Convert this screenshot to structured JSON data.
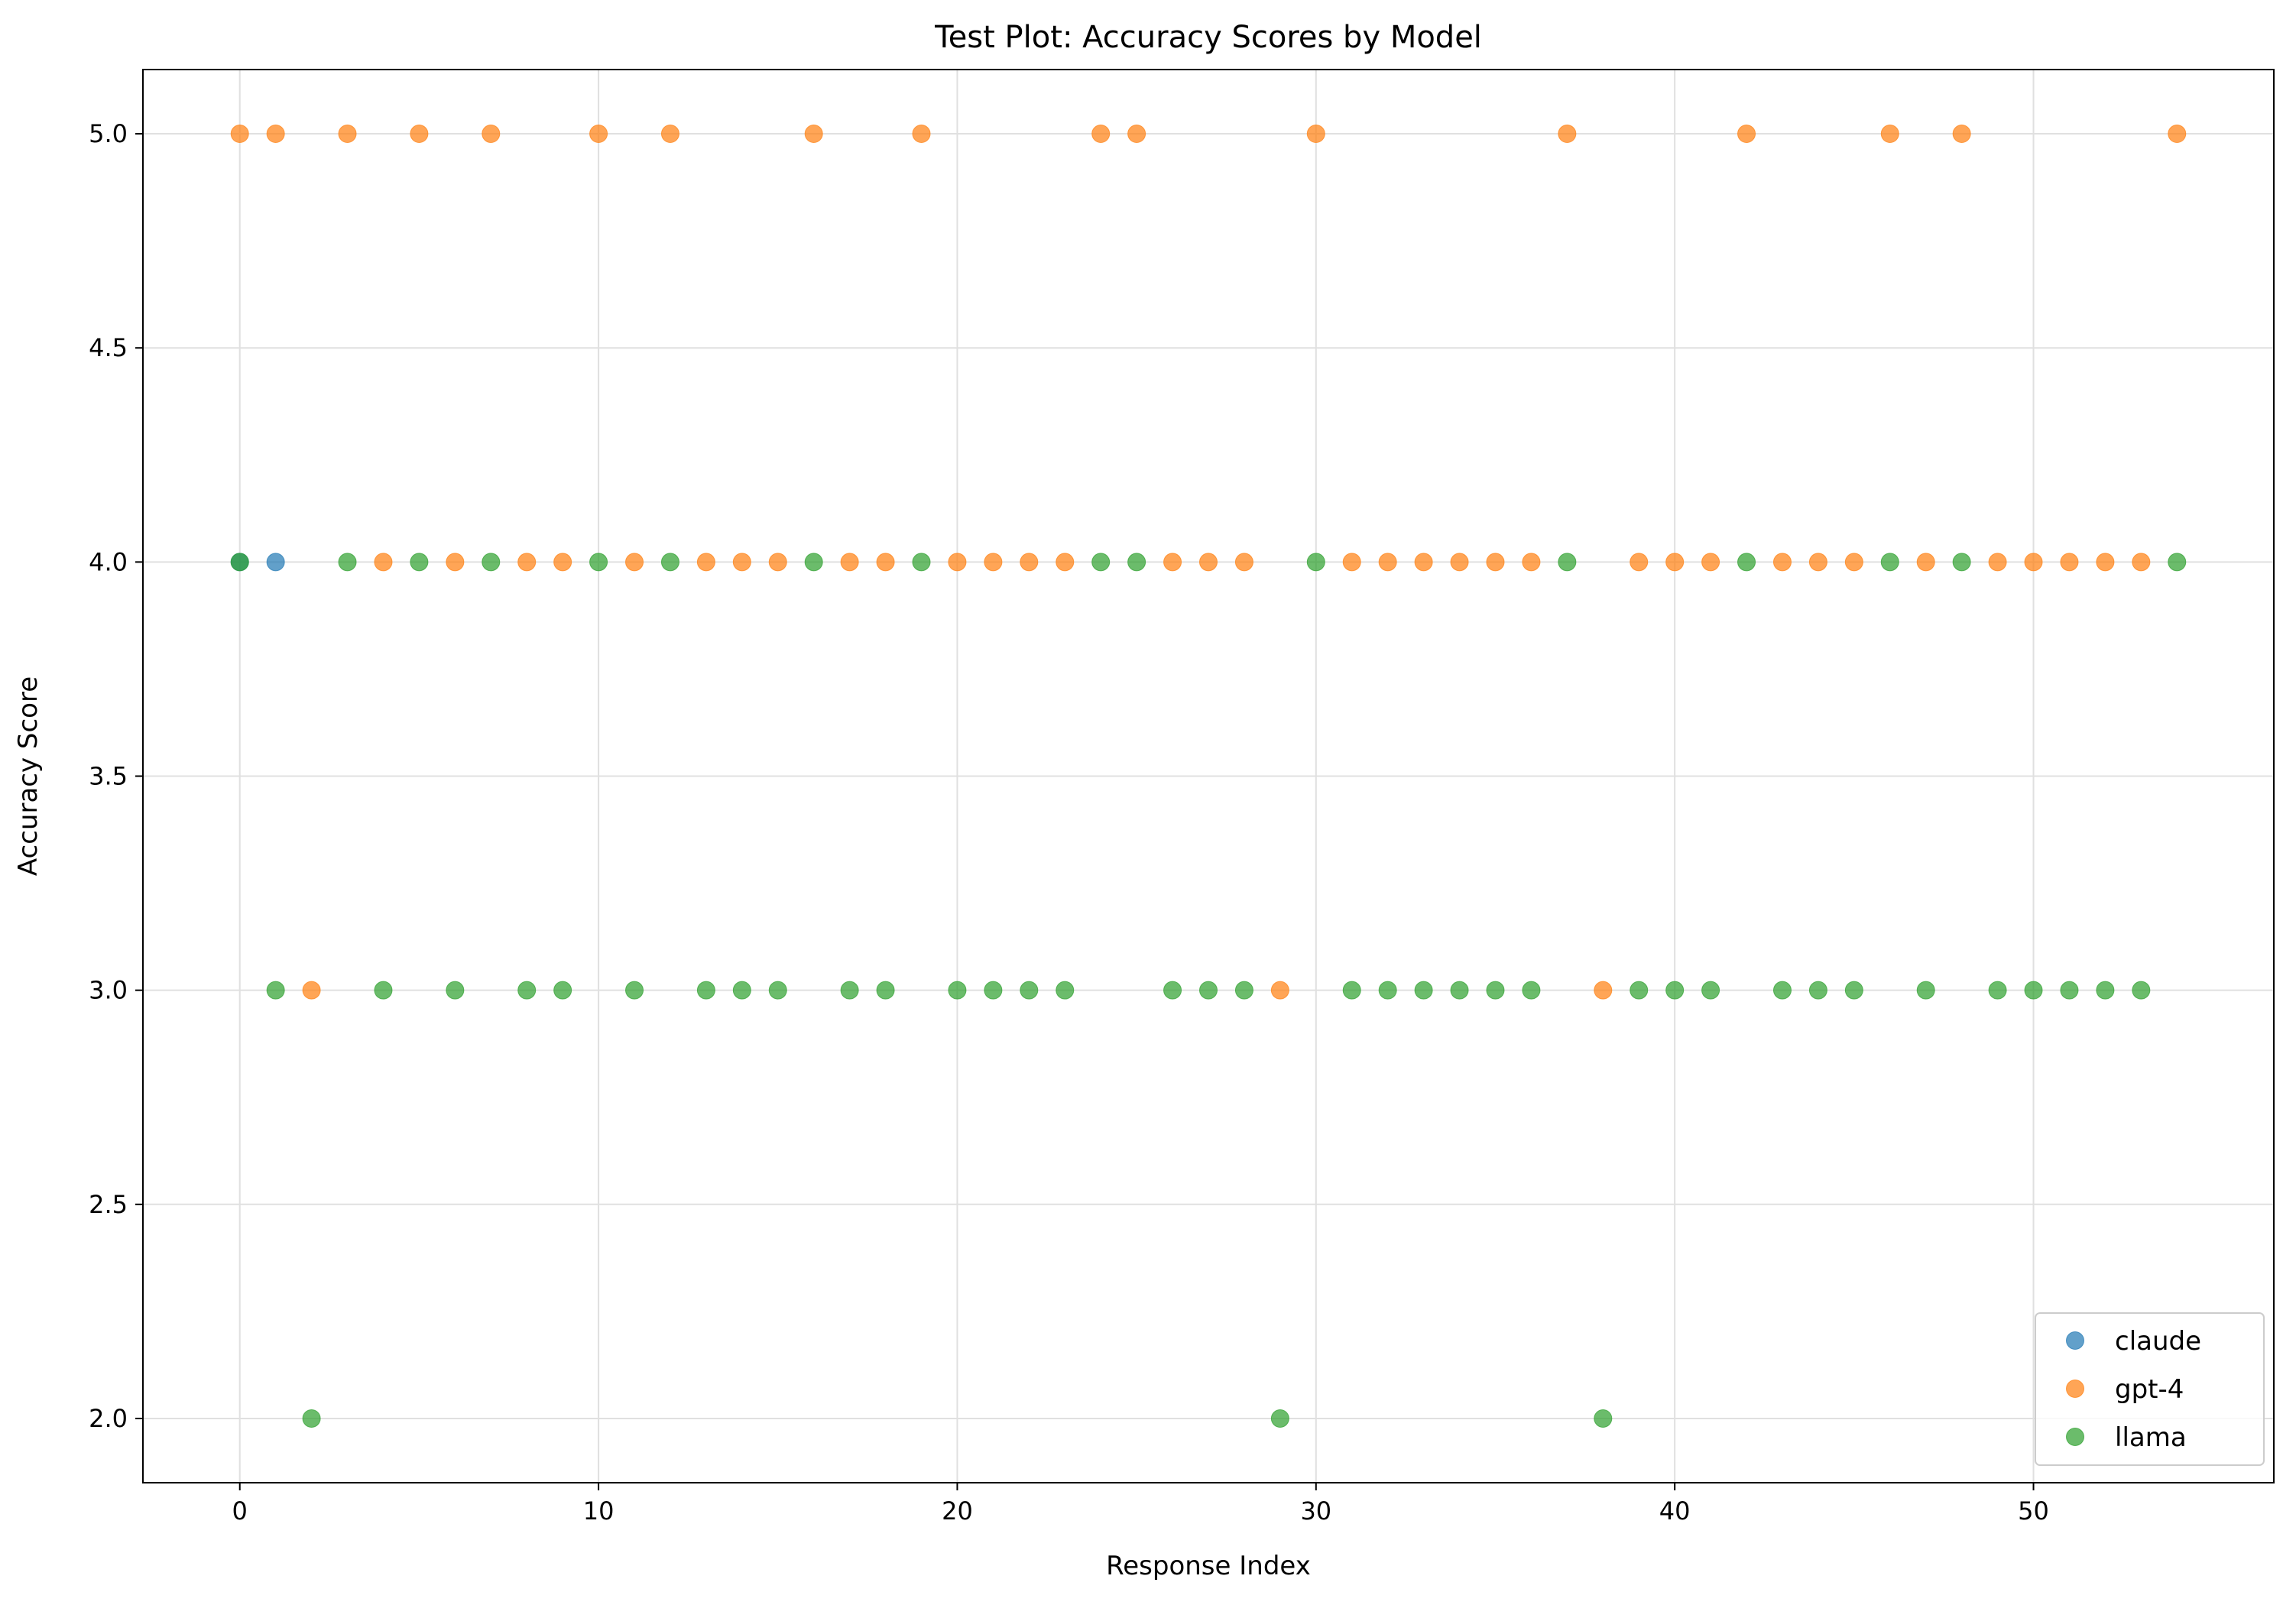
{
  "chart_data": {
    "type": "scatter",
    "title": "Test Plot: Accuracy Scores by Model",
    "xlabel": "Response Index",
    "ylabel": "Accuracy Score",
    "xlim": [
      -2.7,
      56.7
    ],
    "ylim": [
      1.85,
      5.15
    ],
    "xticks": [
      0,
      10,
      20,
      30,
      40,
      50
    ],
    "yticks": [
      2.0,
      2.5,
      3.0,
      3.5,
      4.0,
      4.5,
      5.0
    ],
    "ytick_labels": [
      "2.0",
      "2.5",
      "3.0",
      "3.5",
      "4.0",
      "4.5",
      "5.0"
    ],
    "grid": true,
    "legend_position": "lower right",
    "series": [
      {
        "name": "claude",
        "color": "#1f77b4",
        "x": [
          0,
          1
        ],
        "y": [
          4,
          4
        ]
      },
      {
        "name": "gpt-4",
        "color": "#ff7f0e",
        "x": [
          0,
          1,
          2,
          3,
          4,
          5,
          6,
          7,
          8,
          9,
          10,
          11,
          12,
          13,
          14,
          15,
          16,
          17,
          18,
          19,
          20,
          21,
          22,
          23,
          24,
          25,
          26,
          27,
          28,
          29,
          30,
          31,
          32,
          33,
          34,
          35,
          36,
          37,
          38,
          39,
          40,
          41,
          42,
          43,
          44,
          45,
          46,
          47,
          48,
          49,
          50,
          51,
          52,
          53,
          54
        ],
        "y": [
          5,
          5,
          3,
          5,
          4,
          5,
          4,
          5,
          4,
          4,
          5,
          4,
          5,
          4,
          4,
          4,
          5,
          4,
          4,
          5,
          4,
          4,
          4,
          4,
          5,
          5,
          4,
          4,
          4,
          3,
          5,
          4,
          4,
          4,
          4,
          4,
          4,
          5,
          3,
          4,
          4,
          4,
          5,
          4,
          4,
          4,
          5,
          4,
          5,
          4,
          4,
          4,
          4,
          4,
          5
        ]
      },
      {
        "name": "llama",
        "color": "#2ca02c",
        "x": [
          0,
          1,
          2,
          3,
          4,
          5,
          6,
          7,
          8,
          9,
          10,
          11,
          12,
          13,
          14,
          15,
          16,
          17,
          18,
          19,
          20,
          21,
          22,
          23,
          24,
          25,
          26,
          27,
          28,
          29,
          30,
          31,
          32,
          33,
          34,
          35,
          36,
          37,
          38,
          39,
          40,
          41,
          42,
          43,
          44,
          45,
          46,
          47,
          48,
          49,
          50,
          51,
          52,
          53,
          54
        ],
        "y": [
          4,
          3,
          2,
          4,
          3,
          4,
          3,
          4,
          3,
          3,
          4,
          3,
          4,
          3,
          3,
          3,
          4,
          3,
          3,
          4,
          3,
          3,
          3,
          3,
          4,
          4,
          3,
          3,
          3,
          2,
          4,
          3,
          3,
          3,
          3,
          3,
          3,
          4,
          2,
          3,
          3,
          3,
          4,
          3,
          3,
          3,
          4,
          3,
          4,
          3,
          3,
          3,
          3,
          3,
          4
        ]
      }
    ]
  }
}
